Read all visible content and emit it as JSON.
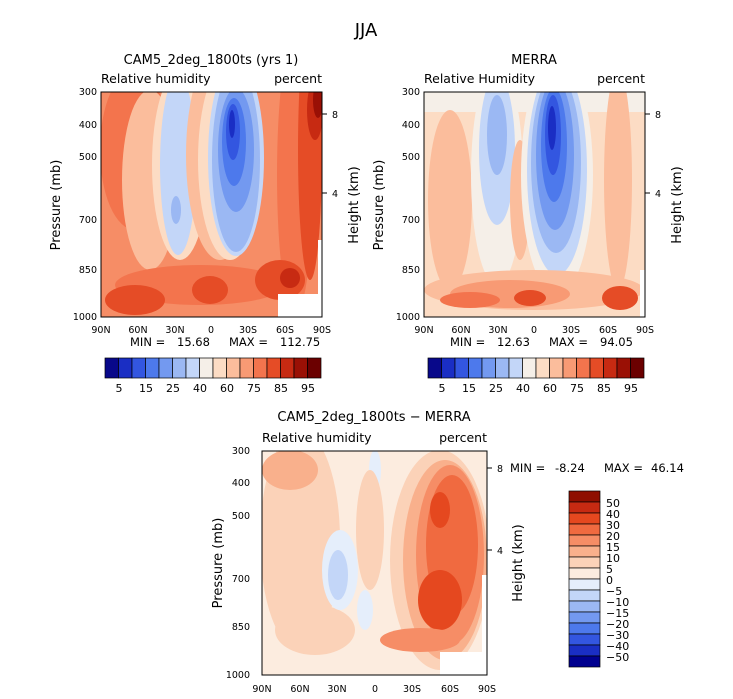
{
  "figure_title": "JJA",
  "chart_data": [
    {
      "type": "contour",
      "id": "cam5",
      "title": "CAM5_2deg_1800ts (yrs 1)",
      "left_label": "Relative humidity",
      "right_label": "percent",
      "xlabel": "",
      "ylabel": "Pressure (mb)",
      "y2label": "Height (km)",
      "x_ticks": [
        "90N",
        "60N",
        "30N",
        "0",
        "30S",
        "60S",
        "90S"
      ],
      "y_ticks": [
        "300",
        "400",
        "500",
        "700",
        "850",
        "1000"
      ],
      "y2_ticks": [
        "8",
        "4"
      ],
      "min_label": "MIN =",
      "min_value": "15.68",
      "max_label": "MAX =",
      "max_value": "112.75",
      "field_min": 15.68,
      "field_max": 112.75,
      "colorbar_labels": [
        "5",
        "15",
        "25",
        "40",
        "60",
        "75",
        "85",
        "95"
      ]
    },
    {
      "type": "contour",
      "id": "merra",
      "title": "MERRA",
      "left_label": "Relative Humidity",
      "right_label": "percent",
      "xlabel": "",
      "ylabel": "Pressure (mb)",
      "y2label": "Height (km)",
      "x_ticks": [
        "90N",
        "60N",
        "30N",
        "0",
        "30S",
        "60S",
        "90S"
      ],
      "y_ticks": [
        "300",
        "400",
        "500",
        "700",
        "850",
        "1000"
      ],
      "y2_ticks": [
        "8",
        "4"
      ],
      "min_label": "MIN =",
      "min_value": "12.63",
      "max_label": "MAX =",
      "max_value": "94.05",
      "field_min": 12.63,
      "field_max": 94.05,
      "colorbar_labels": [
        "5",
        "15",
        "25",
        "40",
        "60",
        "75",
        "85",
        "95"
      ]
    },
    {
      "type": "contour",
      "id": "diff",
      "title": "CAM5_2deg_1800ts − MERRA",
      "left_label": "Relative humidity",
      "right_label": "percent",
      "xlabel": "",
      "ylabel": "Pressure (mb)",
      "y2label": "Height (km)",
      "x_ticks": [
        "90N",
        "60N",
        "30N",
        "0",
        "30S",
        "60S",
        "90S"
      ],
      "y_ticks": [
        "300",
        "400",
        "500",
        "700",
        "850",
        "1000"
      ],
      "y2_ticks": [
        "8",
        "4"
      ],
      "min_label": "MIN =",
      "min_value": "-8.24",
      "max_label": "MAX =",
      "max_value": "46.14",
      "field_min": -8.24,
      "field_max": 46.14,
      "colorbar_labels": [
        "50",
        "40",
        "30",
        "20",
        "15",
        "10",
        "5",
        "0",
        "−5",
        "−10",
        "−15",
        "−20",
        "−30",
        "−40",
        "−50"
      ]
    }
  ],
  "colors": {
    "abs_scale": [
      "#08088a",
      "#1a2ec4",
      "#3356e0",
      "#4d79ec",
      "#7399f0",
      "#9bb8f3",
      "#c3d6f8",
      "#f5efe8",
      "#fcdcc4",
      "#fbbd9c",
      "#f89a74",
      "#f3744d",
      "#e54c26",
      "#c72a12",
      "#9a1005",
      "#6b0000"
    ],
    "diff_scale": [
      "#00008f",
      "#1a2ec4",
      "#3356e0",
      "#4d79ec",
      "#7399f0",
      "#9bb8f3",
      "#c3d6f8",
      "#e5eefb",
      "#fcecdf",
      "#fbd2b8",
      "#f9b08c",
      "#f68d66",
      "#f06a40",
      "#e5481f",
      "#c72a12",
      "#8f0f00"
    ]
  }
}
